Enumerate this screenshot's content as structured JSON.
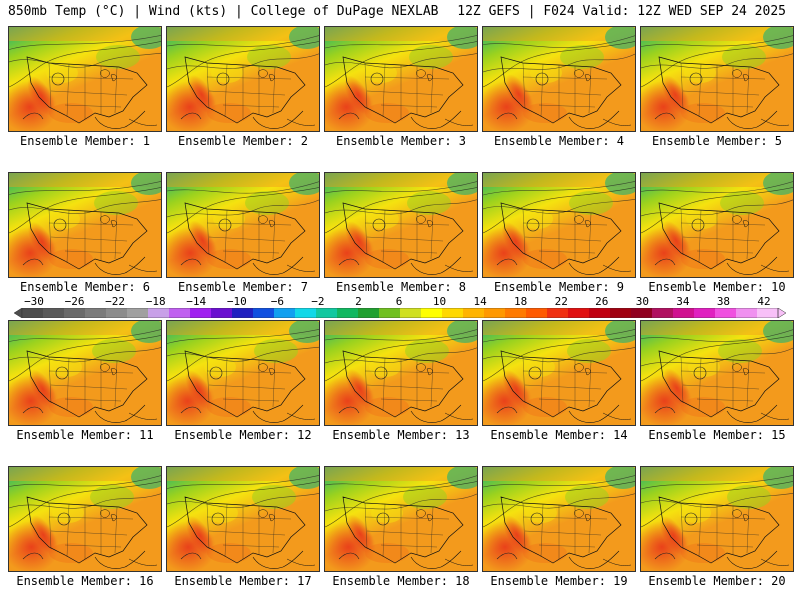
{
  "header": {
    "left": "850mb Temp (°C) | Wind (kts) | College of DuPage NEXLAB",
    "right": "12Z GEFS | F024 Valid: 12Z WED SEP 24 2025"
  },
  "panels": [
    {
      "label": "Ensemble Member: 1"
    },
    {
      "label": "Ensemble Member: 2"
    },
    {
      "label": "Ensemble Member: 3"
    },
    {
      "label": "Ensemble Member: 4"
    },
    {
      "label": "Ensemble Member: 5"
    },
    {
      "label": "Ensemble Member: 6"
    },
    {
      "label": "Ensemble Member: 7"
    },
    {
      "label": "Ensemble Member: 8"
    },
    {
      "label": "Ensemble Member: 9"
    },
    {
      "label": "Ensemble Member: 10"
    },
    {
      "label": "Ensemble Member: 11"
    },
    {
      "label": "Ensemble Member: 12"
    },
    {
      "label": "Ensemble Member: 13"
    },
    {
      "label": "Ensemble Member: 14"
    },
    {
      "label": "Ensemble Member: 15"
    },
    {
      "label": "Ensemble Member: 16"
    },
    {
      "label": "Ensemble Member: 17"
    },
    {
      "label": "Ensemble Member: 18"
    },
    {
      "label": "Ensemble Member: 19"
    },
    {
      "label": "Ensemble Member: 20"
    }
  ],
  "colorbar": {
    "labels": [
      "−30",
      "−26",
      "−22",
      "−18",
      "−14",
      "−10",
      "−6",
      "−2",
      "2",
      "6",
      "10",
      "14",
      "18",
      "22",
      "26",
      "30",
      "34",
      "38",
      "42"
    ],
    "colors": [
      "#4d4d4d",
      "#5a5a5a",
      "#6a6a6a",
      "#7b7b7b",
      "#8c8c8c",
      "#a0a0a0",
      "#c8a0e8",
      "#c060f0",
      "#a020f0",
      "#6a10d0",
      "#2020c0",
      "#1050e0",
      "#10a0f0",
      "#10d8e8",
      "#10c8a0",
      "#10b860",
      "#20a030",
      "#70c020",
      "#d0e020",
      "#ffff00",
      "#ffd800",
      "#ffb400",
      "#ff9800",
      "#ff7a00",
      "#ff5a00",
      "#f03010",
      "#e01010",
      "#c00010",
      "#a00010",
      "#900020",
      "#b01060",
      "#d01090",
      "#e020c0",
      "#f050e0",
      "#f090f0",
      "#f8c0f8"
    ]
  },
  "colors": {
    "warm": "#f39a1c",
    "hot": "#e8381a",
    "yellow": "#f5e20f",
    "green": "#9bd21e",
    "teal": "#18b07a"
  }
}
